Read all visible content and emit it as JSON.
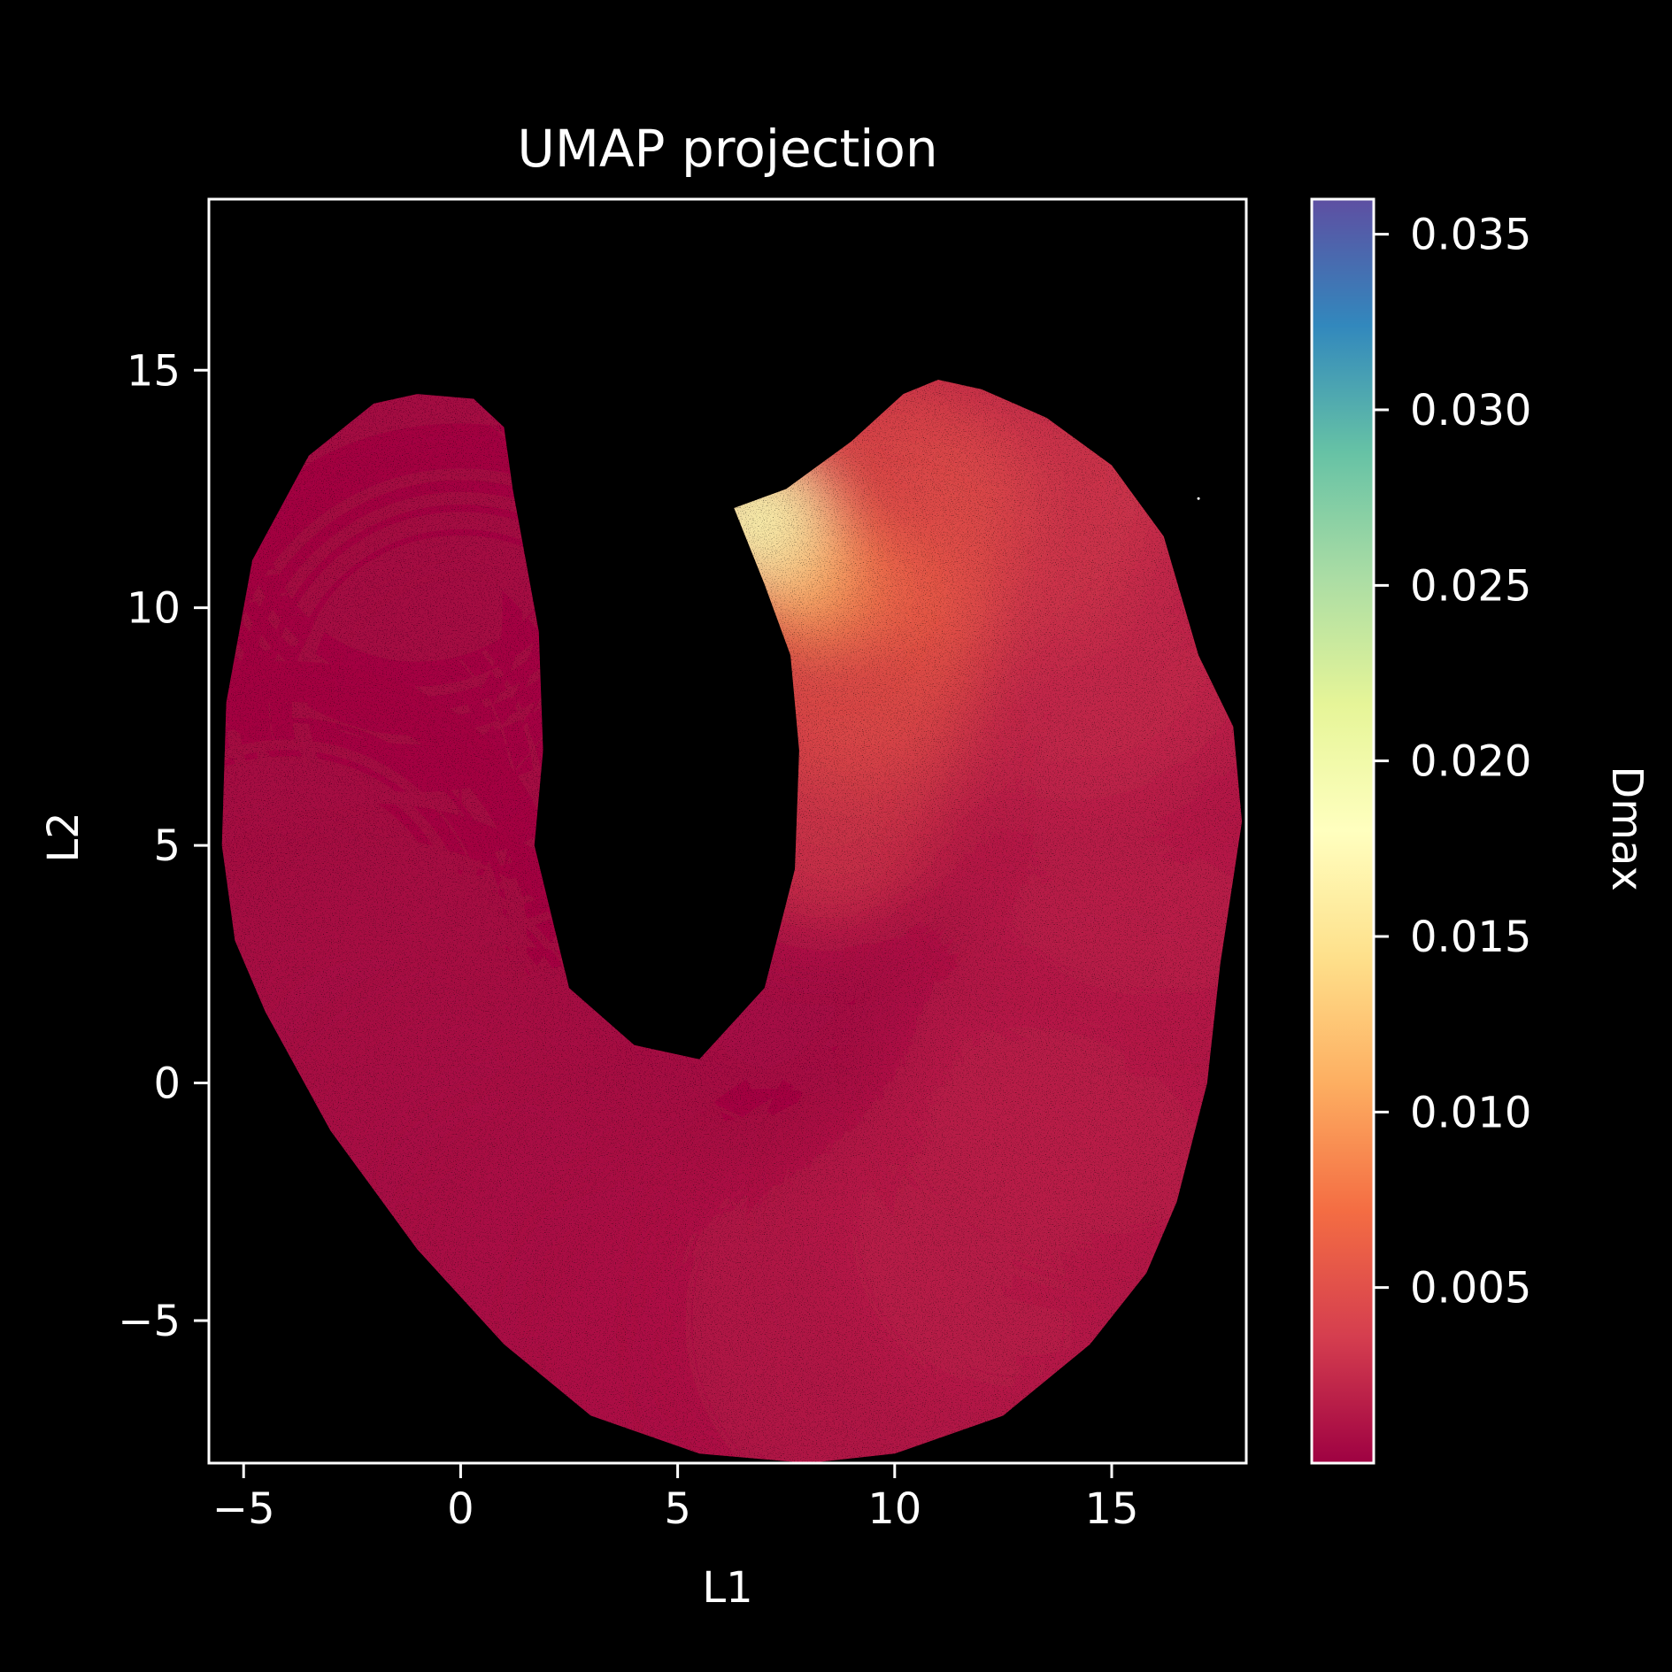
{
  "chart_data": {
    "type": "scatter",
    "title": "UMAP projection",
    "xlabel": "L1",
    "ylabel": "L2",
    "xlim": [
      -5.8,
      18.1
    ],
    "ylim": [
      -8.0,
      18.6
    ],
    "x_ticks": [
      -5,
      0,
      5,
      10,
      15
    ],
    "y_ticks": [
      -5,
      0,
      5,
      10,
      15
    ],
    "x_tick_labels": [
      "−5",
      "0",
      "5",
      "10",
      "15"
    ],
    "y_tick_labels": [
      "−5",
      "0",
      "5",
      "10",
      "15"
    ],
    "grid": false,
    "background": "#000000",
    "colorbar": {
      "label": "Dmax",
      "range": [
        0.0,
        0.036
      ],
      "ticks": [
        0.005,
        0.01,
        0.015,
        0.02,
        0.025,
        0.03,
        0.035
      ],
      "tick_labels": [
        "0.005",
        "0.010",
        "0.015",
        "0.020",
        "0.025",
        "0.030",
        "0.035"
      ],
      "colormap": "Spectral",
      "colors": [
        "#9e0142",
        "#d53e4f",
        "#f46d43",
        "#fdae61",
        "#fee08b",
        "#ffffbf",
        "#e6f598",
        "#abdda4",
        "#66c2a5",
        "#3288bd",
        "#5e4fa2"
      ]
    },
    "point_cloud": {
      "description_shape": "horseshoe",
      "outline": [
        [
          -5.5,
          5
        ],
        [
          -5.4,
          8
        ],
        [
          -4.8,
          11
        ],
        [
          -3.5,
          13.2
        ],
        [
          -2,
          14.3
        ],
        [
          -1,
          14.5
        ],
        [
          0.3,
          14.4
        ],
        [
          1,
          13.8
        ],
        [
          1.2,
          12.5
        ],
        [
          1.5,
          11
        ],
        [
          1.8,
          9.5
        ],
        [
          1.9,
          7
        ],
        [
          1.7,
          5
        ],
        [
          2.5,
          2
        ],
        [
          4,
          0.8
        ],
        [
          5.5,
          0.5
        ],
        [
          7,
          2
        ],
        [
          7.7,
          4.5
        ],
        [
          7.8,
          7
        ],
        [
          7.6,
          9
        ],
        [
          7,
          10.5
        ],
        [
          6.3,
          12.1
        ],
        [
          7.5,
          12.5
        ],
        [
          9,
          13.5
        ],
        [
          10.2,
          14.5
        ],
        [
          11,
          14.8
        ],
        [
          12,
          14.6
        ],
        [
          13.5,
          14
        ],
        [
          15,
          13
        ],
        [
          16.2,
          11.5
        ],
        [
          17,
          9
        ],
        [
          17.8,
          7.5
        ],
        [
          18.0,
          5.5
        ],
        [
          17.5,
          2.5
        ],
        [
          17.2,
          0
        ],
        [
          16.5,
          -2.5
        ],
        [
          15.8,
          -4
        ],
        [
          14.5,
          -5.5
        ],
        [
          12.5,
          -7
        ],
        [
          10,
          -7.8
        ],
        [
          8,
          -8
        ],
        [
          5.5,
          -7.8
        ],
        [
          3,
          -7
        ],
        [
          1,
          -5.5
        ],
        [
          -1,
          -3.5
        ],
        [
          -3,
          -1
        ],
        [
          -4.5,
          1.5
        ],
        [
          -5.2,
          3
        ]
      ],
      "samples": [
        {
          "x": -2.5,
          "y": 10,
          "c": 0.0004
        },
        {
          "x": -3.5,
          "y": 6,
          "c": 0.0004
        },
        {
          "x": -1,
          "y": 12,
          "c": 0.0004
        },
        {
          "x": 0,
          "y": 8,
          "c": 0.0005
        },
        {
          "x": -4,
          "y": 3,
          "c": 0.0006
        },
        {
          "x": -2,
          "y": 0,
          "c": 0.0008
        },
        {
          "x": 1,
          "y": -3,
          "c": 0.0008
        },
        {
          "x": 4,
          "y": -5,
          "c": 0.001
        },
        {
          "x": 7,
          "y": -6,
          "c": 0.0012
        },
        {
          "x": 10,
          "y": -5,
          "c": 0.0015
        },
        {
          "x": 13,
          "y": -3,
          "c": 0.002
        },
        {
          "x": 15,
          "y": 1,
          "c": 0.002
        },
        {
          "x": 16,
          "y": 6,
          "c": 0.002
        },
        {
          "x": 14,
          "y": 10,
          "c": 0.003
        },
        {
          "x": 12,
          "y": 13,
          "c": 0.004
        },
        {
          "x": 10,
          "y": 12,
          "c": 0.006
        },
        {
          "x": 9,
          "y": 9,
          "c": 0.007
        },
        {
          "x": 8.5,
          "y": 6,
          "c": 0.005
        },
        {
          "x": 8,
          "y": 10.5,
          "c": 0.011
        },
        {
          "x": 7,
          "y": 11.8,
          "c": 0.016
        },
        {
          "x": 6.6,
          "y": 12,
          "c": 0.019
        }
      ]
    }
  }
}
